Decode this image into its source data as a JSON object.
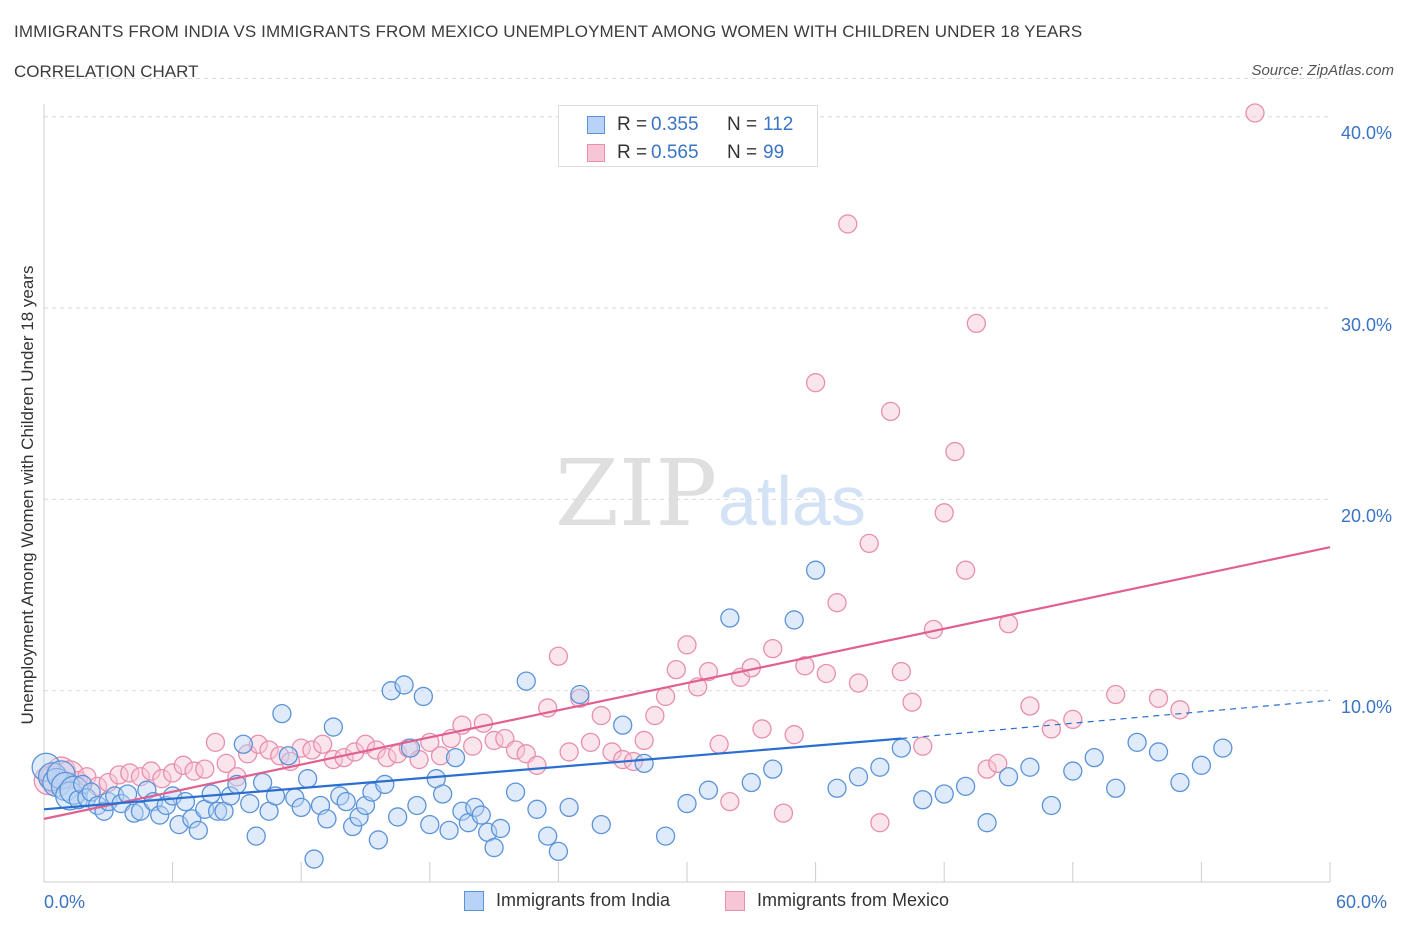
{
  "header": {
    "title": "IMMIGRANTS FROM INDIA VS IMMIGRANTS FROM MEXICO UNEMPLOYMENT AMONG WOMEN WITH CHILDREN UNDER 18 YEARS",
    "subtitle": "CORRELATION CHART",
    "source": "Source: ZipAtlas.com"
  },
  "legend": {
    "india": {
      "r_label": "R =",
      "r_value": "0.355",
      "n_label": "N =",
      "n_value": "112"
    },
    "mexico": {
      "r_label": "R =",
      "r_value": "0.565",
      "n_label": "N =",
      "n_value": "99"
    }
  },
  "watermark": {
    "zip": "ZIP",
    "atlas": "atlas"
  },
  "colors": {
    "india_fill": "#b8d3f5",
    "india_stroke": "#5b93d8",
    "india_line": "#2a6fd0",
    "mexico_fill": "#f7c6d6",
    "mexico_stroke": "#e88fad",
    "mexico_line": "#e06090",
    "grid": "#d9d9d9",
    "axis_label": "#3a74c4"
  },
  "chart_data": {
    "type": "scatter",
    "title": "IMMIGRANTS FROM INDIA VS IMMIGRANTS FROM MEXICO UNEMPLOYMENT AMONG WOMEN WITH CHILDREN UNDER 18 YEARS",
    "xlabel": "",
    "ylabel": "Unemployment Among Women with Children Under 18 years",
    "xlim": [
      0,
      60
    ],
    "ylim": [
      0,
      42
    ],
    "x_tick_labels": [
      "0.0%",
      "60.0%"
    ],
    "y_ticks": [
      10,
      20,
      30,
      40
    ],
    "y_tick_labels": [
      "10.0%",
      "20.0%",
      "30.0%",
      "40.0%"
    ],
    "grid": true,
    "legend_position": "top-center and bottom",
    "series": [
      {
        "name": "Immigrants from India",
        "color": "#5b93d8",
        "trend": {
          "x": [
            0,
            40
          ],
          "y": [
            3.8,
            7.5
          ],
          "dashed_to": [
            60,
            9.5
          ]
        },
        "points": [
          [
            0.1,
            6.0
          ],
          [
            0.4,
            5.5
          ],
          [
            0.6,
            5.2
          ],
          [
            0.8,
            5.6
          ],
          [
            1.0,
            5.0
          ],
          [
            1.2,
            4.5
          ],
          [
            1.4,
            4.8
          ],
          [
            1.6,
            4.3
          ],
          [
            1.8,
            5.1
          ],
          [
            2.0,
            4.4
          ],
          [
            2.2,
            4.7
          ],
          [
            2.5,
            4.0
          ],
          [
            2.8,
            3.7
          ],
          [
            3.0,
            4.2
          ],
          [
            3.3,
            4.5
          ],
          [
            3.6,
            4.1
          ],
          [
            3.9,
            4.6
          ],
          [
            4.2,
            3.6
          ],
          [
            4.5,
            3.7
          ],
          [
            4.8,
            4.8
          ],
          [
            5.1,
            4.2
          ],
          [
            5.4,
            3.5
          ],
          [
            5.7,
            4.0
          ],
          [
            6.0,
            4.5
          ],
          [
            6.3,
            3.0
          ],
          [
            6.6,
            4.2
          ],
          [
            6.9,
            3.3
          ],
          [
            7.2,
            2.7
          ],
          [
            7.5,
            3.8
          ],
          [
            7.8,
            4.6
          ],
          [
            8.1,
            3.7
          ],
          [
            8.4,
            3.7
          ],
          [
            8.7,
            4.5
          ],
          [
            9.0,
            5.1
          ],
          [
            9.3,
            7.2
          ],
          [
            9.6,
            4.1
          ],
          [
            9.9,
            2.4
          ],
          [
            10.2,
            5.2
          ],
          [
            10.5,
            3.7
          ],
          [
            10.8,
            4.5
          ],
          [
            11.1,
            8.8
          ],
          [
            11.4,
            6.6
          ],
          [
            11.7,
            4.4
          ],
          [
            12.0,
            3.9
          ],
          [
            12.3,
            5.4
          ],
          [
            12.6,
            1.2
          ],
          [
            12.9,
            4.0
          ],
          [
            13.2,
            3.3
          ],
          [
            13.5,
            8.1
          ],
          [
            13.8,
            4.5
          ],
          [
            14.1,
            4.2
          ],
          [
            14.4,
            2.9
          ],
          [
            14.7,
            3.4
          ],
          [
            15.0,
            4.0
          ],
          [
            15.3,
            4.7
          ],
          [
            15.6,
            2.2
          ],
          [
            15.9,
            5.1
          ],
          [
            16.2,
            10.0
          ],
          [
            16.5,
            3.4
          ],
          [
            16.8,
            10.3
          ],
          [
            17.1,
            7.0
          ],
          [
            17.4,
            4.0
          ],
          [
            17.7,
            9.7
          ],
          [
            18.0,
            3.0
          ],
          [
            18.3,
            5.4
          ],
          [
            18.6,
            4.6
          ],
          [
            18.9,
            2.7
          ],
          [
            19.2,
            6.5
          ],
          [
            19.5,
            3.7
          ],
          [
            19.8,
            3.1
          ],
          [
            20.1,
            3.9
          ],
          [
            20.4,
            3.5
          ],
          [
            20.7,
            2.6
          ],
          [
            21.0,
            1.8
          ],
          [
            21.3,
            2.8
          ],
          [
            22.0,
            4.7
          ],
          [
            22.5,
            10.5
          ],
          [
            23.0,
            3.8
          ],
          [
            23.5,
            2.4
          ],
          [
            24.0,
            1.6
          ],
          [
            24.5,
            3.9
          ],
          [
            25.0,
            9.8
          ],
          [
            26.0,
            3.0
          ],
          [
            27.0,
            8.2
          ],
          [
            28.0,
            6.2
          ],
          [
            29.0,
            2.4
          ],
          [
            30.0,
            4.1
          ],
          [
            31.0,
            4.8
          ],
          [
            32.0,
            13.8
          ],
          [
            33.0,
            5.2
          ],
          [
            34.0,
            5.9
          ],
          [
            35.0,
            13.7
          ],
          [
            36.0,
            16.3
          ],
          [
            37.0,
            4.9
          ],
          [
            38.0,
            5.5
          ],
          [
            39.0,
            6.0
          ],
          [
            40.0,
            7.0
          ],
          [
            41.0,
            4.3
          ],
          [
            42.0,
            4.6
          ],
          [
            43.0,
            5.0
          ],
          [
            44.0,
            3.1
          ],
          [
            45.0,
            5.5
          ],
          [
            46.0,
            6.0
          ],
          [
            47.0,
            4.0
          ],
          [
            48.0,
            5.8
          ],
          [
            49.0,
            6.5
          ],
          [
            50.0,
            4.9
          ],
          [
            51.0,
            7.3
          ],
          [
            52.0,
            6.8
          ],
          [
            53.0,
            5.2
          ],
          [
            54.0,
            6.1
          ],
          [
            55.0,
            7.0
          ]
        ]
      },
      {
        "name": "Immigrants from Mexico",
        "color": "#e88fad",
        "trend": {
          "x": [
            0,
            60
          ],
          "y": [
            3.3,
            17.5
          ]
        },
        "points": [
          [
            0.2,
            5.3
          ],
          [
            0.5,
            5.4
          ],
          [
            0.8,
            5.8
          ],
          [
            1.2,
            5.6
          ],
          [
            1.6,
            5.3
          ],
          [
            2.0,
            5.5
          ],
          [
            2.5,
            5.0
          ],
          [
            3.0,
            5.2
          ],
          [
            3.5,
            5.6
          ],
          [
            4.0,
            5.7
          ],
          [
            4.5,
            5.5
          ],
          [
            5.0,
            5.8
          ],
          [
            5.5,
            5.4
          ],
          [
            6.0,
            5.7
          ],
          [
            6.5,
            6.1
          ],
          [
            7.0,
            5.8
          ],
          [
            7.5,
            5.9
          ],
          [
            8.0,
            7.3
          ],
          [
            8.5,
            6.2
          ],
          [
            9.0,
            5.5
          ],
          [
            9.5,
            6.7
          ],
          [
            10.0,
            7.2
          ],
          [
            10.5,
            6.9
          ],
          [
            11.0,
            6.6
          ],
          [
            11.5,
            6.3
          ],
          [
            12.0,
            7.0
          ],
          [
            12.5,
            6.9
          ],
          [
            13.0,
            7.2
          ],
          [
            13.5,
            6.4
          ],
          [
            14.0,
            6.5
          ],
          [
            14.5,
            6.8
          ],
          [
            15.0,
            7.2
          ],
          [
            15.5,
            6.9
          ],
          [
            16.0,
            6.5
          ],
          [
            16.5,
            6.7
          ],
          [
            17.0,
            7.0
          ],
          [
            17.5,
            6.4
          ],
          [
            18.0,
            7.3
          ],
          [
            18.5,
            6.6
          ],
          [
            19.0,
            7.5
          ],
          [
            19.5,
            8.2
          ],
          [
            20.0,
            7.1
          ],
          [
            20.5,
            8.3
          ],
          [
            21.0,
            7.4
          ],
          [
            21.5,
            7.5
          ],
          [
            22.0,
            6.9
          ],
          [
            22.5,
            6.7
          ],
          [
            23.0,
            6.1
          ],
          [
            23.5,
            9.1
          ],
          [
            24.0,
            11.8
          ],
          [
            24.5,
            6.8
          ],
          [
            25.0,
            9.6
          ],
          [
            25.5,
            7.3
          ],
          [
            26.0,
            8.7
          ],
          [
            26.5,
            6.8
          ],
          [
            27.0,
            6.4
          ],
          [
            27.5,
            6.3
          ],
          [
            28.0,
            7.4
          ],
          [
            28.5,
            8.7
          ],
          [
            29.0,
            9.7
          ],
          [
            29.5,
            11.1
          ],
          [
            30.0,
            12.4
          ],
          [
            30.5,
            10.2
          ],
          [
            31.0,
            11.0
          ],
          [
            31.5,
            7.2
          ],
          [
            32.0,
            4.2
          ],
          [
            32.5,
            10.7
          ],
          [
            33.0,
            11.2
          ],
          [
            33.5,
            8.0
          ],
          [
            34.0,
            12.2
          ],
          [
            34.5,
            3.6
          ],
          [
            35.0,
            7.7
          ],
          [
            35.5,
            11.3
          ],
          [
            36.0,
            26.1
          ],
          [
            36.5,
            10.9
          ],
          [
            37.0,
            14.6
          ],
          [
            37.5,
            34.4
          ],
          [
            38.0,
            10.4
          ],
          [
            38.5,
            17.7
          ],
          [
            39.0,
            3.1
          ],
          [
            39.5,
            24.6
          ],
          [
            40.0,
            11.0
          ],
          [
            40.5,
            9.4
          ],
          [
            41.0,
            7.1
          ],
          [
            41.5,
            13.2
          ],
          [
            42.0,
            19.3
          ],
          [
            42.5,
            22.5
          ],
          [
            43.0,
            16.3
          ],
          [
            43.5,
            29.2
          ],
          [
            44.0,
            5.9
          ],
          [
            44.5,
            6.2
          ],
          [
            45.0,
            13.5
          ],
          [
            46.0,
            9.2
          ],
          [
            47.0,
            8.0
          ],
          [
            48.0,
            8.5
          ],
          [
            50.0,
            9.8
          ],
          [
            52.0,
            9.6
          ],
          [
            53.0,
            9.0
          ],
          [
            56.5,
            40.2
          ]
        ]
      }
    ]
  },
  "bottom_legend": {
    "india": "Immigrants from India",
    "mexico": "Immigrants from Mexico"
  },
  "axis_labels": {
    "x_left": "0.0%",
    "x_right": "60.0%",
    "y_title": "Unemployment Among Women with Children Under 18 years"
  }
}
